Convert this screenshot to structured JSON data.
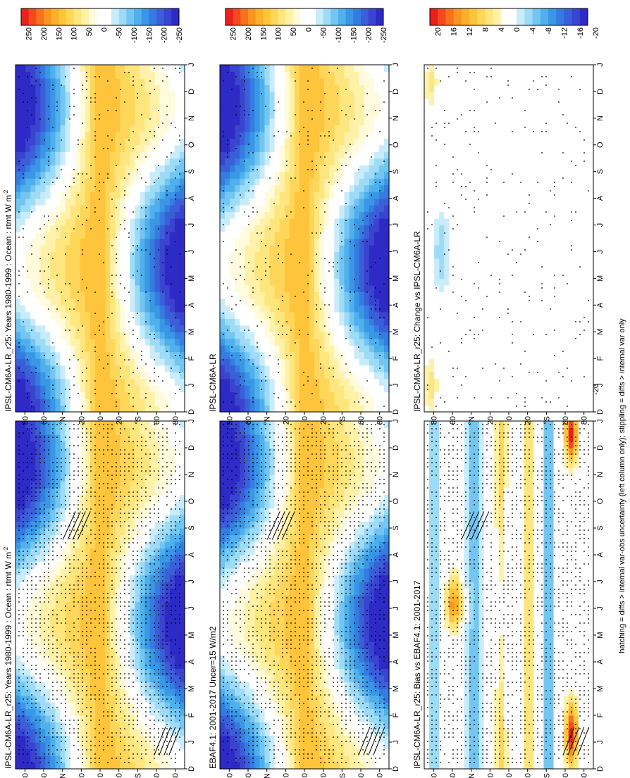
{
  "caption": "hatching = diffs > internal var-obs uncertainty (left column only); stippling = diffs > internal var only",
  "months": [
    "D",
    "J",
    "F",
    "M",
    "A",
    "M",
    "J",
    "J",
    "A",
    "S",
    "O",
    "N",
    "D",
    "J"
  ],
  "lat_ticks": [
    "80",
    "60",
    "°N",
    "20",
    "0",
    "20",
    "°S",
    "60",
    "80"
  ],
  "colorbars": {
    "main": {
      "colors": [
        "#e8221a",
        "#f24a1c",
        "#f7711e",
        "#fa9422",
        "#fcb02a",
        "#fdc43c",
        "#fed65a",
        "#fee67f",
        "#fff2a8",
        "#fffbdc",
        "#ffffff",
        "#ffffff",
        "#c9ecfa",
        "#9edbf6",
        "#73c6f1",
        "#4fb0ec",
        "#3a97e6",
        "#357ce0",
        "#3a5fd8",
        "#3a44cf",
        "#2d2ac6"
      ],
      "labels": [
        "250",
        "200",
        "150",
        "100",
        "50",
        "0",
        "-50",
        "-100",
        "-150",
        "-200",
        "-250"
      ]
    },
    "diff": {
      "colors": [
        "#e8221a",
        "#f24a1c",
        "#f7711e",
        "#fa9422",
        "#fcb02a",
        "#fdc43c",
        "#fed65a",
        "#fee67f",
        "#fff2a8",
        "#ffffff",
        "#ffffff",
        "#c9ecfa",
        "#9edbf6",
        "#73c6f1",
        "#4fb0ec",
        "#3a97e6",
        "#357ce0",
        "#3a5fd8",
        "#3a44cf",
        "#2d2ac6"
      ],
      "labels": [
        "20",
        "16",
        "12",
        "8",
        "4",
        "0",
        "-4",
        "-8",
        "-12",
        "-16",
        "-20"
      ]
    }
  },
  "chart_data": [
    {
      "type": "heatmap",
      "panel": "left-top",
      "title": "IPSL-CM6A-LR_r25: Years 1980-1999 : Ocean : rtmt W m",
      "title_sup": "-2",
      "x": [
        "D",
        "J",
        "F",
        "M",
        "A",
        "M",
        "J",
        "J",
        "A",
        "S",
        "O",
        "N",
        "D",
        "J"
      ],
      "y": [
        "80",
        "60",
        "°N",
        "20",
        "0",
        "20",
        "°S",
        "60",
        "80"
      ],
      "field": "seasonal",
      "colorbar": "main",
      "stippling": true,
      "hatching": true
    },
    {
      "type": "heatmap",
      "panel": "left-middle",
      "title": "EBAF4.1: 2001-2017 Uncer=15 W/m2",
      "title_sup": "",
      "x": [
        "D",
        "J",
        "F",
        "M",
        "A",
        "M",
        "J",
        "J",
        "A",
        "S",
        "O",
        "N",
        "D",
        "J"
      ],
      "y": [
        "80",
        "60",
        "°N",
        "20",
        "0",
        "20",
        "°S",
        "60",
        "80"
      ],
      "field": "seasonal",
      "colorbar": "main",
      "stippling": true,
      "hatching": true
    },
    {
      "type": "heatmap",
      "panel": "left-bottom",
      "title": "IPSL-CM6A-LR_r25: Bias vs EBAF4.1: 2001-2017",
      "title_sup": "",
      "x": [
        "D",
        "J",
        "F",
        "M",
        "A",
        "M",
        "J",
        "J",
        "A",
        "S",
        "O",
        "N",
        "D",
        "J"
      ],
      "y": [
        "80",
        "60",
        "°N",
        "20",
        "0",
        "20",
        "°S",
        "60",
        "80"
      ],
      "field": "bias",
      "colorbar": "diff",
      "stippling": true,
      "hatching": true
    },
    {
      "type": "heatmap",
      "panel": "right-top",
      "title": "IPSL-CM6A-LR_r25: Years 1980-1999 : Ocean : rtmt W m",
      "title_sup": "-2",
      "x": [
        "D",
        "J",
        "F",
        "M",
        "A",
        "M",
        "J",
        "J",
        "A",
        "S",
        "O",
        "N",
        "D",
        "J"
      ],
      "y": [
        "80",
        "60",
        "°N",
        "20",
        "0",
        "20",
        "°S",
        "60",
        "80"
      ],
      "field": "seasonal",
      "colorbar": "main",
      "stippling": true,
      "hatching": false
    },
    {
      "type": "heatmap",
      "panel": "right-middle",
      "title": "IPSL-CM6A-LR",
      "title_sup": "",
      "x": [
        "D",
        "J",
        "F",
        "M",
        "A",
        "M",
        "J",
        "J",
        "A",
        "S",
        "O",
        "N",
        "D",
        "J"
      ],
      "y": [
        "80",
        "60",
        "°N",
        "20",
        "0",
        "20",
        "°S",
        "60",
        "80"
      ],
      "field": "seasonal",
      "colorbar": "main",
      "stippling": true,
      "hatching": false
    },
    {
      "type": "heatmap",
      "panel": "right-bottom",
      "title": "IPSL-CM6A-LR_r25: Change vs IPSL-CM6A-LR",
      "title_sup": "",
      "x": [
        "D",
        "J",
        "F",
        "M",
        "A",
        "M",
        "J",
        "J",
        "A",
        "S",
        "O",
        "N",
        "D",
        "J"
      ],
      "y": [
        "80",
        "60",
        "°N",
        "20",
        "0",
        "20",
        "°S",
        "60",
        "80"
      ],
      "field": "change",
      "colorbar": "diff",
      "stippling": true,
      "hatching": false
    }
  ]
}
